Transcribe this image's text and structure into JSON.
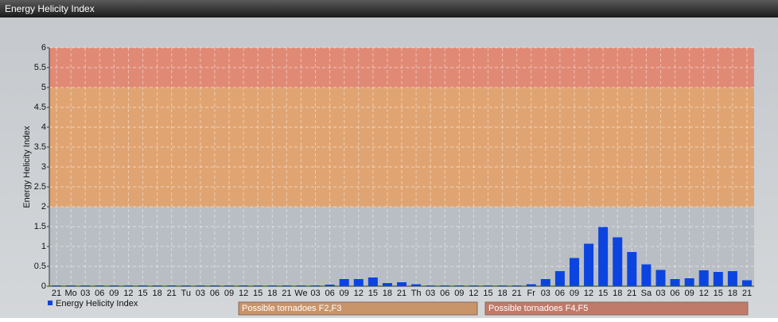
{
  "chart_data": {
    "type": "bar",
    "title": "Energy Helicity Index",
    "y_label": "Energy Helicity Index",
    "categories": [
      "21",
      "Mo",
      "03",
      "06",
      "09",
      "12",
      "15",
      "18",
      "21",
      "Tu",
      "03",
      "06",
      "09",
      "12",
      "15",
      "18",
      "21",
      "We",
      "03",
      "06",
      "09",
      "12",
      "15",
      "18",
      "21",
      "Th",
      "03",
      "06",
      "09",
      "12",
      "15",
      "18",
      "21",
      "Fr",
      "03",
      "06",
      "09",
      "12",
      "15",
      "18",
      "21",
      "Sa",
      "03",
      "06",
      "09",
      "12",
      "15",
      "18",
      "21"
    ],
    "series": [
      {
        "name": "Energy Helicity Index",
        "color": "#0c44e0",
        "values": [
          0.02,
          0.02,
          0.02,
          0.02,
          0.02,
          0.02,
          0.02,
          0.02,
          0.02,
          0.02,
          0.02,
          0.02,
          0.02,
          0.02,
          0.02,
          0.02,
          0.02,
          0.02,
          0.02,
          0.04,
          0.18,
          0.18,
          0.22,
          0.08,
          0.1,
          0.05,
          0.02,
          0.02,
          0.02,
          0.02,
          0.02,
          0.02,
          0.02,
          0.05,
          0.18,
          0.38,
          0.71,
          1.07,
          1.49,
          1.23,
          0.86,
          0.55,
          0.41,
          0.18,
          0.2,
          0.4,
          0.36,
          0.38,
          0.15
        ]
      }
    ],
    "ylim": [
      0,
      6
    ],
    "yticks": [
      0,
      0.5,
      1,
      1.5,
      2,
      2.5,
      3,
      3.5,
      4,
      4.5,
      5,
      5.5,
      6
    ],
    "grid": true,
    "bands": [
      {
        "from": 2,
        "to": 5,
        "color": "#e0a472",
        "label": "Possible tornadoes F2,F3",
        "label_color": "#c8946a"
      },
      {
        "from": 5,
        "to": 6,
        "color": "#e08a76",
        "label": "Possible tornadoes F4,F5",
        "label_color": "#c07a6a"
      }
    ]
  }
}
